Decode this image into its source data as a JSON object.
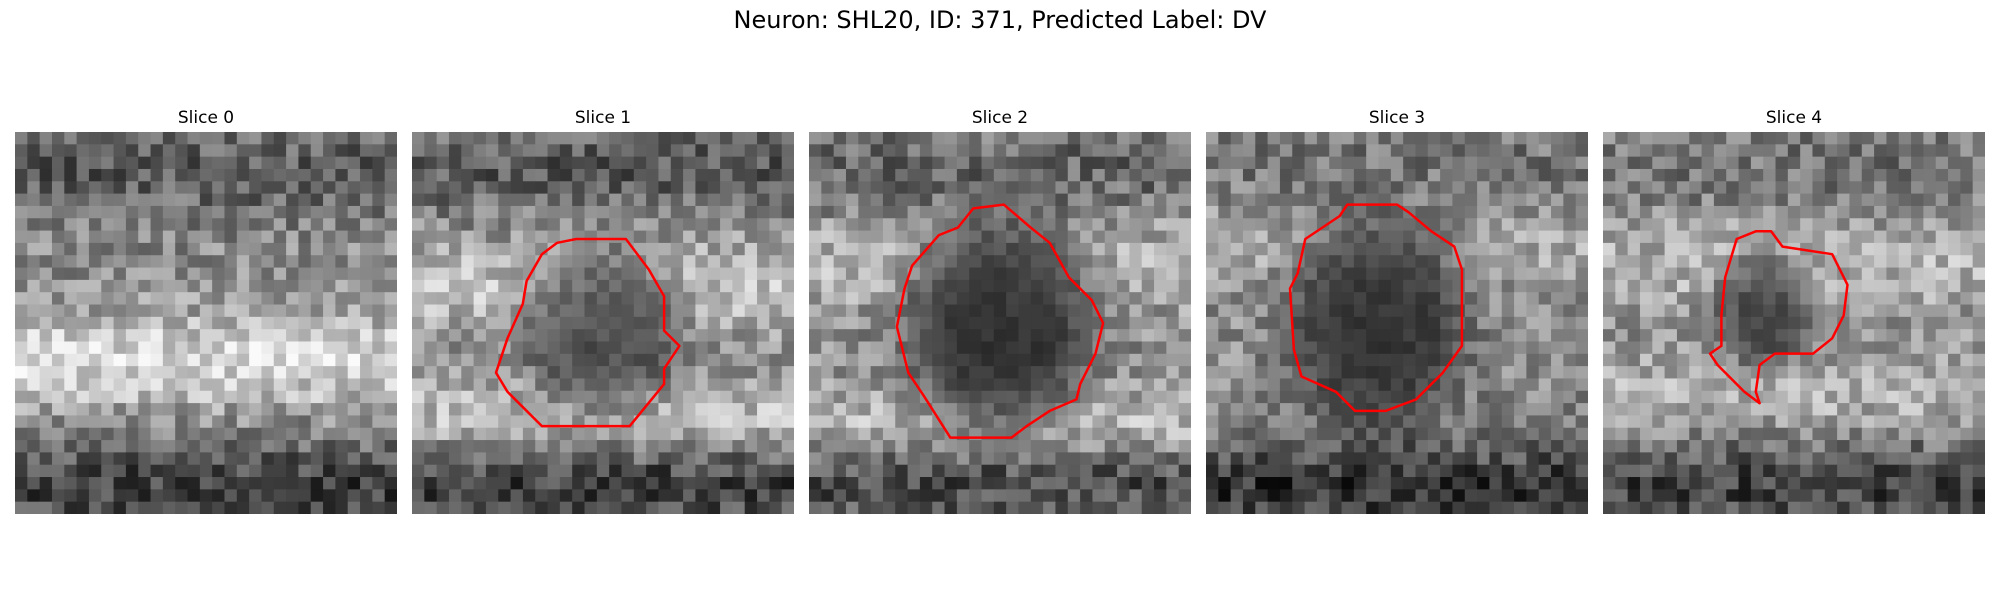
{
  "figure": {
    "title": "Neuron: SHL20, ID: 371, Predicted Label: DV"
  },
  "colors": {
    "contour": "#ff0000",
    "colormap": "gray"
  },
  "panels": [
    {
      "title": "Slice 0",
      "has_contour": false
    },
    {
      "title": "Slice 1",
      "has_contour": true
    },
    {
      "title": "Slice 2",
      "has_contour": true
    },
    {
      "title": "Slice 3",
      "has_contour": true
    },
    {
      "title": "Slice 4",
      "has_contour": true
    }
  ]
}
